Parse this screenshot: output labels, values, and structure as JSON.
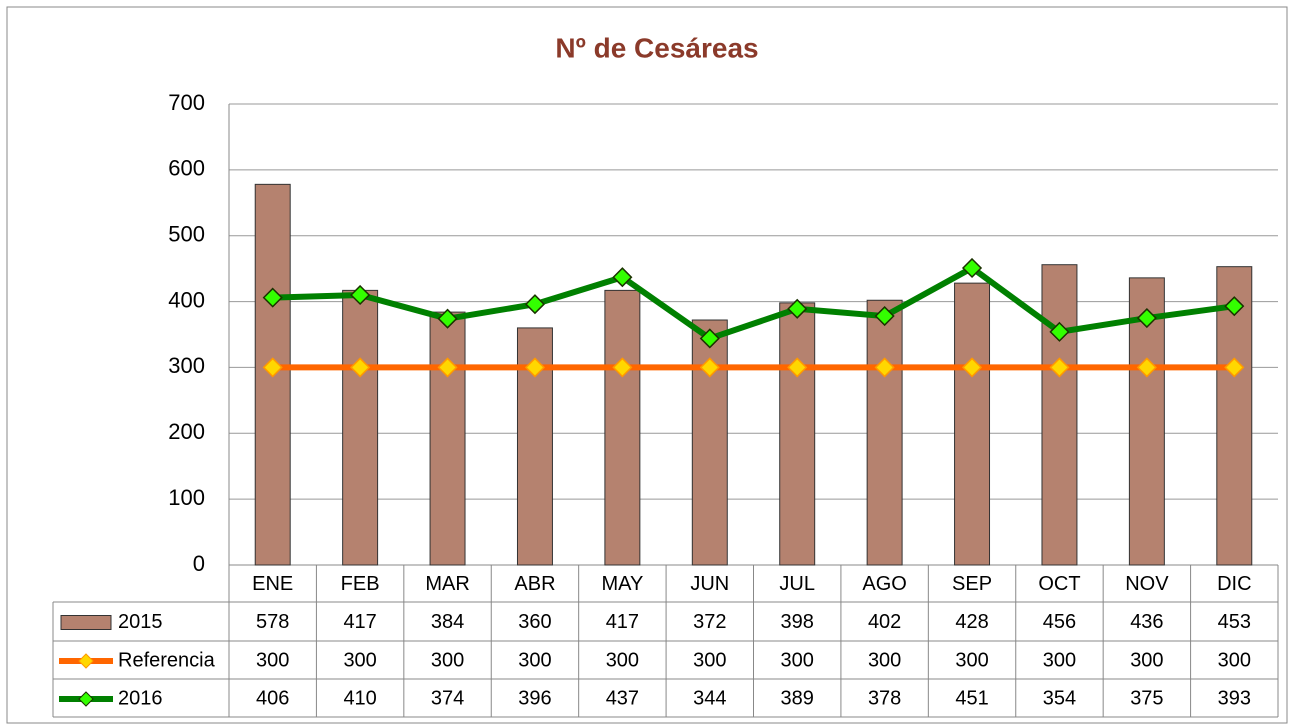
{
  "chart_data": {
    "type": "bar_line",
    "title": "Nº de Cesáreas",
    "categories": [
      "ENE",
      "FEB",
      "MAR",
      "ABR",
      "MAY",
      "JUN",
      "JUL",
      "AGO",
      "SEP",
      "OCT",
      "NOV",
      "DIC"
    ],
    "series": [
      {
        "name": "2015",
        "type": "bar",
        "color": "#b5826f",
        "values": [
          578,
          417,
          384,
          360,
          417,
          372,
          398,
          402,
          428,
          456,
          436,
          453
        ]
      },
      {
        "name": "Referencia",
        "type": "line",
        "color": "#ff6600",
        "marker_color": "#ffd700",
        "values": [
          300,
          300,
          300,
          300,
          300,
          300,
          300,
          300,
          300,
          300,
          300,
          300
        ]
      },
      {
        "name": "2016",
        "type": "line",
        "color": "#008000",
        "marker_color": "#33ff00",
        "values": [
          406,
          410,
          374,
          396,
          437,
          344,
          389,
          378,
          451,
          354,
          375,
          393
        ]
      }
    ],
    "ylim": [
      0,
      700
    ],
    "yticks": [
      0,
      100,
      200,
      300,
      400,
      500,
      600,
      700
    ],
    "grid": true,
    "data_table": true
  }
}
